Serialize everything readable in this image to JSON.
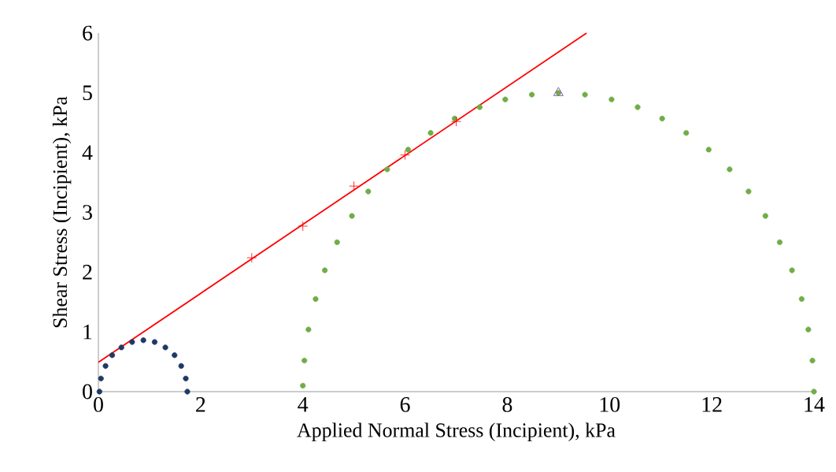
{
  "chart_data": {
    "type": "scatter",
    "xlabel": "Applied Normal Stress (Incipient), kPa",
    "ylabel": "Shear Stress (Incipient), kPa",
    "xlim": [
      0,
      14
    ],
    "xticks": [
      0,
      2,
      4,
      6,
      8,
      10,
      12,
      14
    ],
    "ylim": [
      0,
      6
    ],
    "yticks": [
      0,
      1,
      2,
      3,
      4,
      5,
      6
    ],
    "series": [
      {
        "marker": "circle",
        "color": "#203864",
        "x": [
          1.74,
          1.71,
          1.62,
          1.49,
          1.31,
          1.1,
          0.88,
          0.66,
          0.45,
          0.27,
          0.14,
          0.05,
          0.02
        ],
        "values": [
          0,
          0.22,
          0.43,
          0.61,
          0.74,
          0.83,
          0.86,
          0.83,
          0.74,
          0.61,
          0.43,
          0.22,
          0
        ]
      },
      {
        "marker": "circle",
        "color": "#70ad47",
        "x": [
          14,
          13.97,
          13.89,
          13.76,
          13.57,
          13.33,
          13.05,
          12.72,
          12.35,
          11.94,
          11.5,
          11.03,
          10.55,
          10.04,
          9.52,
          9,
          8.48,
          7.96,
          7.46,
          6.97,
          6.5,
          6.06,
          5.65,
          5.28,
          4.96,
          4.67,
          4.43,
          4.25,
          4.11,
          4.03,
          4
        ],
        "values": [
          0,
          0.52,
          1.04,
          1.55,
          2.03,
          2.5,
          2.94,
          3.35,
          3.72,
          4.05,
          4.33,
          4.57,
          4.76,
          4.89,
          4.97,
          5,
          4.97,
          4.89,
          4.76,
          4.57,
          4.33,
          4.05,
          3.72,
          3.35,
          2.94,
          2.5,
          2.03,
          1.55,
          1.04,
          0.52,
          0.1
        ]
      },
      {
        "type": "line",
        "marker": "none",
        "color": "#ff0000",
        "x": [
          0,
          9.55
        ],
        "values": [
          0.49,
          6
        ]
      },
      {
        "marker": "cross",
        "color": "#ff0000",
        "x": [
          3,
          4,
          5,
          6,
          7
        ],
        "values": [
          2.24,
          2.77,
          3.44,
          3.96,
          4.52
        ]
      },
      {
        "marker": "triangle",
        "color": "#7030a0",
        "x": [
          9
        ],
        "values": [
          5
        ]
      }
    ]
  }
}
